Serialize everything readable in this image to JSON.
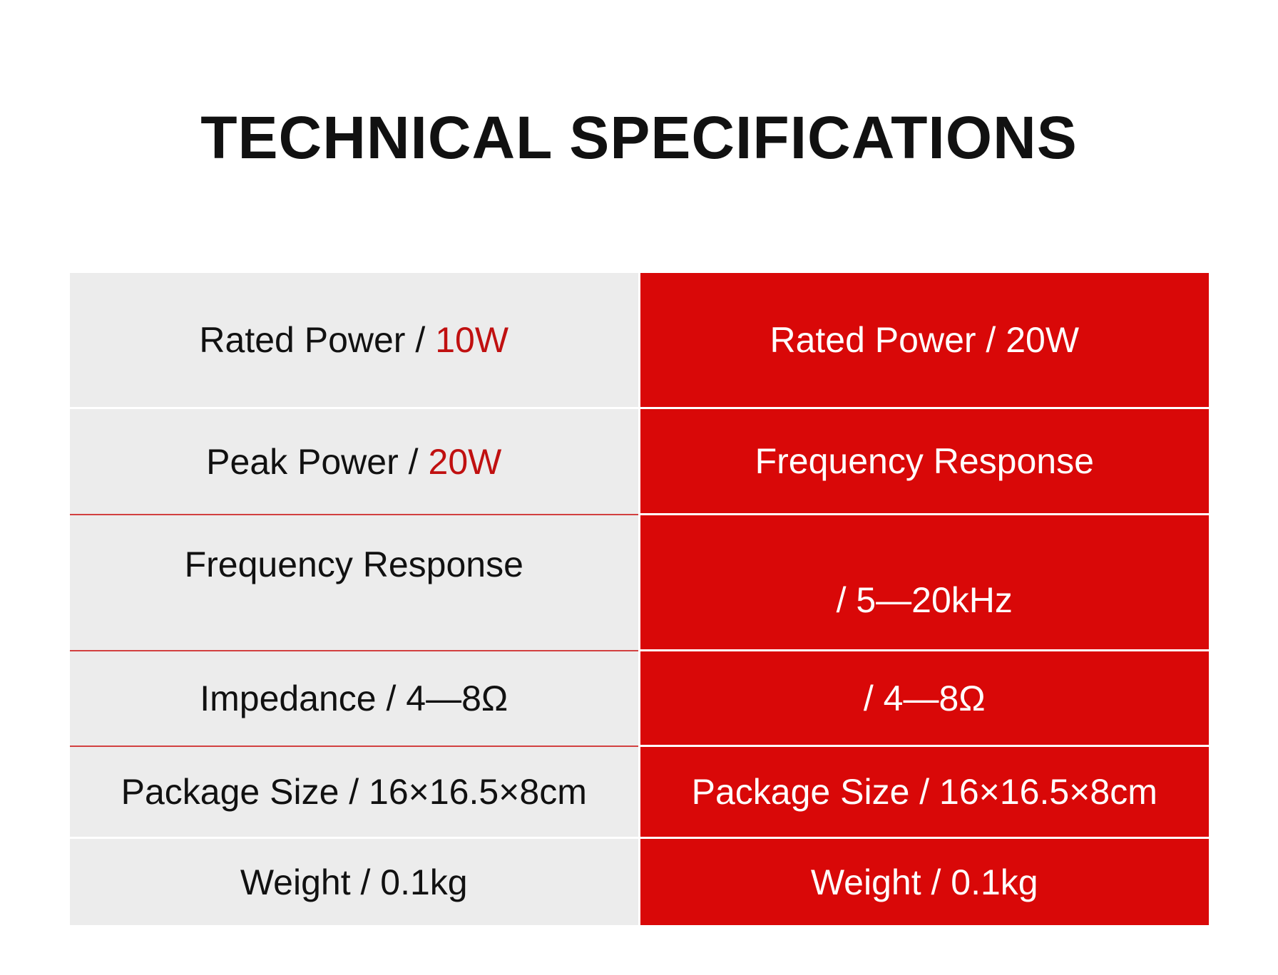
{
  "title": "TECHNICAL SPECIFICATIONS",
  "table": {
    "rows": [
      {
        "left": {
          "text": "Rated Power /",
          "accent": "10W"
        },
        "right": "Rated Power / 20W"
      },
      {
        "left": {
          "text": "Peak Power /",
          "accent": "20W"
        },
        "right": "Frequency Response"
      },
      {
        "left": {
          "text": "Frequency Response"
        },
        "right": "/ 5—20kHz"
      },
      {
        "left": {
          "text": "Impedance / 4—8Ω"
        },
        "right": "/ 4—8Ω"
      },
      {
        "left": {
          "text": "Package Size / 16×16.5×8cm"
        },
        "right": "Package Size / 16×16.5×8cm"
      },
      {
        "left": {
          "text": "Weight / 0.1kg"
        },
        "right": "Weight / 0.1kg"
      }
    ]
  }
}
